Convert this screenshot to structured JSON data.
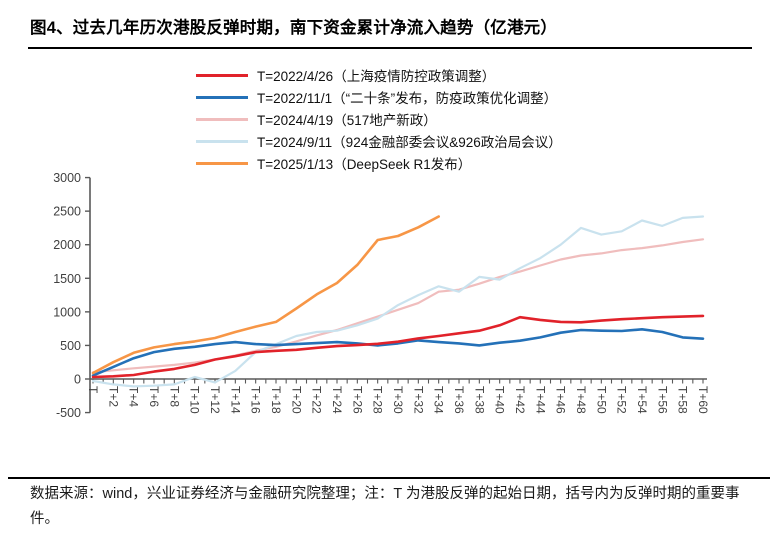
{
  "title": "图4、过去几年历次港股反弹时期，南下资金累计净流入趋势（亿港元）",
  "footer": {
    "text": "数据来源：wind，兴业证券经济与金融研究院整理；注：T 为港股反弹的起始日期，括号内为反弹时期的重要事件。"
  },
  "colors": {
    "axis": "#595959",
    "tick_text": "#404040"
  },
  "chart_data": {
    "type": "line",
    "title": "过去几年历次港股反弹时期，南下资金累计净流入趋势（亿港元）",
    "xlabel": "",
    "ylabel": "",
    "ylim": [
      -500,
      3000
    ],
    "y_ticks": [
      3000,
      2500,
      2000,
      1500,
      1000,
      500,
      0,
      -500
    ],
    "x_step_days": 2,
    "categories": [
      "T",
      "T+2",
      "T+4",
      "T+6",
      "T+8",
      "T+10",
      "T+12",
      "T+14",
      "T+16",
      "T+18",
      "T+20",
      "T+22",
      "T+24",
      "T+26",
      "T+28",
      "T+30",
      "T+32",
      "T+34",
      "T+36",
      "T+38",
      "T+40",
      "T+42",
      "T+44",
      "T+46",
      "T+48",
      "T+50",
      "T+52",
      "T+54",
      "T+56",
      "T+58",
      "T+60"
    ],
    "grid": false,
    "legend_position": "top-left",
    "series": [
      {
        "id": "s2022-04-26",
        "name": "T=2022/4/26（上海疫情防控政策调整）",
        "color": "#e1222a",
        "width": 2.6,
        "values": [
          30,
          40,
          60,
          110,
          150,
          210,
          290,
          340,
          400,
          420,
          435,
          465,
          490,
          505,
          525,
          555,
          605,
          640,
          680,
          720,
          800,
          920,
          880,
          850,
          845,
          870,
          890,
          905,
          920,
          930,
          940
        ]
      },
      {
        "id": "s2022-11-01",
        "name": "T=2022/11/1（“二十条”发布，防疫政策优化调整）",
        "color": "#2471b8",
        "width": 2.6,
        "values": [
          50,
          180,
          310,
          400,
          450,
          480,
          520,
          550,
          520,
          505,
          520,
          535,
          550,
          530,
          500,
          530,
          575,
          550,
          530,
          500,
          540,
          570,
          620,
          690,
          730,
          720,
          715,
          740,
          700,
          620,
          600
        ]
      },
      {
        "id": "s2024-04-19",
        "name": "T=2024/4/19（517地产新政）",
        "color": "#f0bdbd",
        "width": 2.2,
        "values": [
          100,
          130,
          160,
          185,
          210,
          245,
          290,
          350,
          420,
          480,
          560,
          650,
          730,
          830,
          930,
          1030,
          1130,
          1300,
          1330,
          1420,
          1520,
          1600,
          1690,
          1780,
          1840,
          1870,
          1920,
          1950,
          1990,
          2040,
          2080
        ]
      },
      {
        "id": "s2024-09-11",
        "name": "T=2024/9/11（924金融部委会议&926政治局会议）",
        "color": "#c9e2ee",
        "width": 2.2,
        "values": [
          -30,
          -80,
          -110,
          -100,
          -80,
          30,
          -50,
          120,
          400,
          520,
          640,
          700,
          720,
          800,
          900,
          1100,
          1250,
          1380,
          1300,
          1520,
          1480,
          1650,
          1800,
          2000,
          2250,
          2150,
          2200,
          2360,
          2280,
          2400,
          2420
        ]
      },
      {
        "id": "s2025-01-13",
        "name": "T=2025/1/13（DeepSeek R1发布）",
        "color": "#f79646",
        "width": 2.6,
        "values": [
          90,
          250,
          390,
          470,
          520,
          560,
          610,
          700,
          780,
          850,
          1050,
          1260,
          1430,
          1700,
          2070,
          2130,
          2260,
          2420
        ]
      }
    ]
  }
}
